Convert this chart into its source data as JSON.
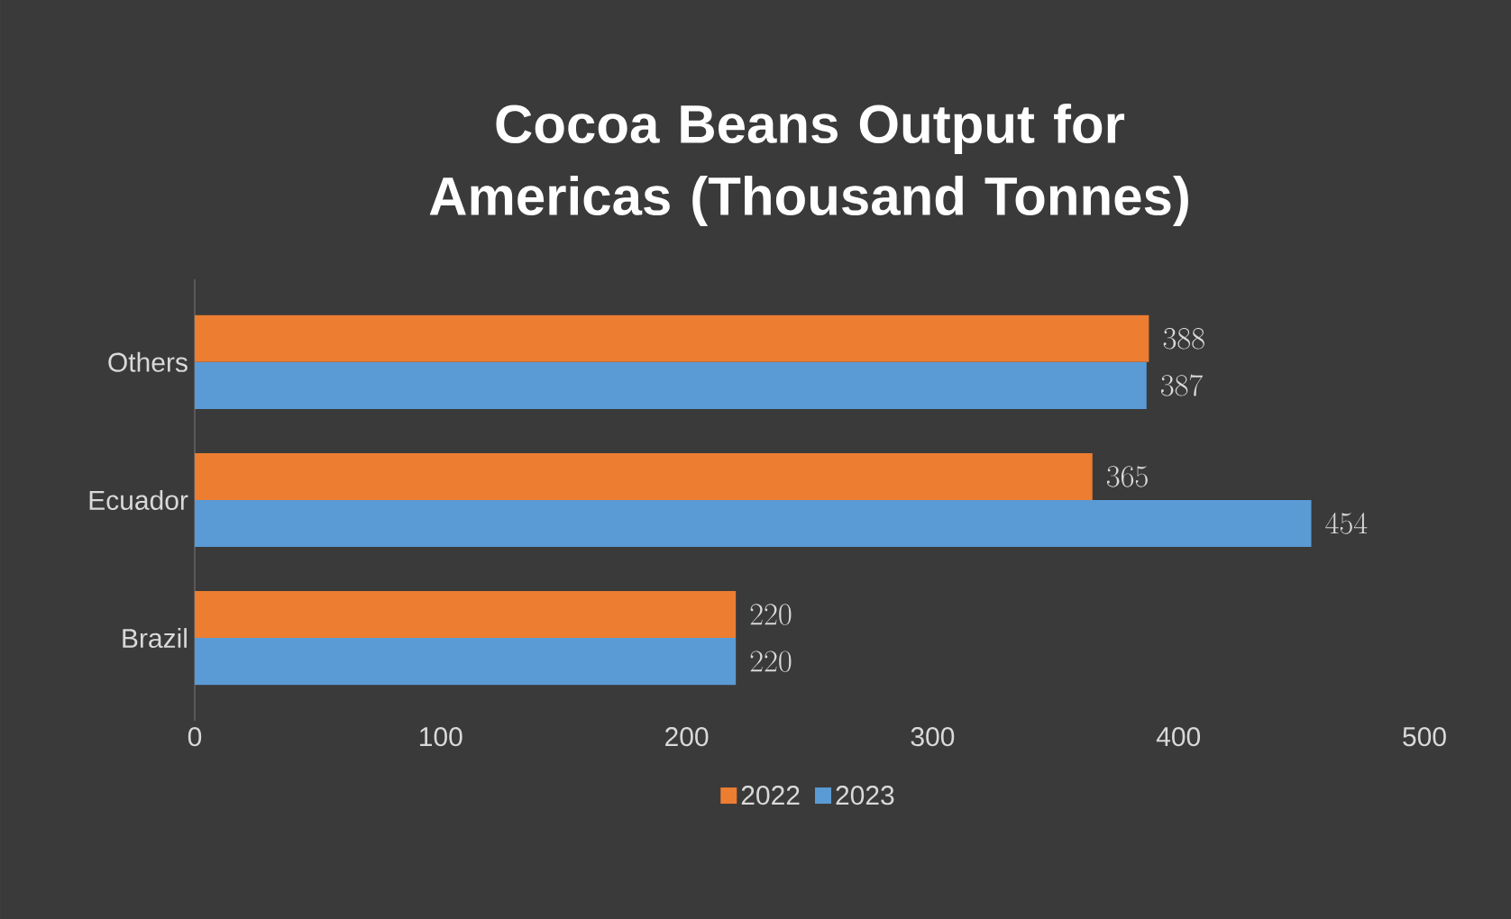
{
  "chart_data": {
    "type": "bar",
    "orientation": "horizontal",
    "title": "Cocoa Beans Output for Americas (Thousand Tonnes)",
    "categories": [
      "Others",
      "Ecuador",
      "Brazil"
    ],
    "series": [
      {
        "name": "2022",
        "color": "#ed7d31",
        "values": [
          388,
          365,
          220
        ]
      },
      {
        "name": "2023",
        "color": "#5b9bd5",
        "values": [
          387,
          454,
          220
        ]
      }
    ],
    "xlim": [
      0,
      500
    ],
    "xticks": [
      0,
      100,
      200,
      300,
      400,
      500
    ],
    "data_labels": true,
    "legend": "bottom"
  }
}
